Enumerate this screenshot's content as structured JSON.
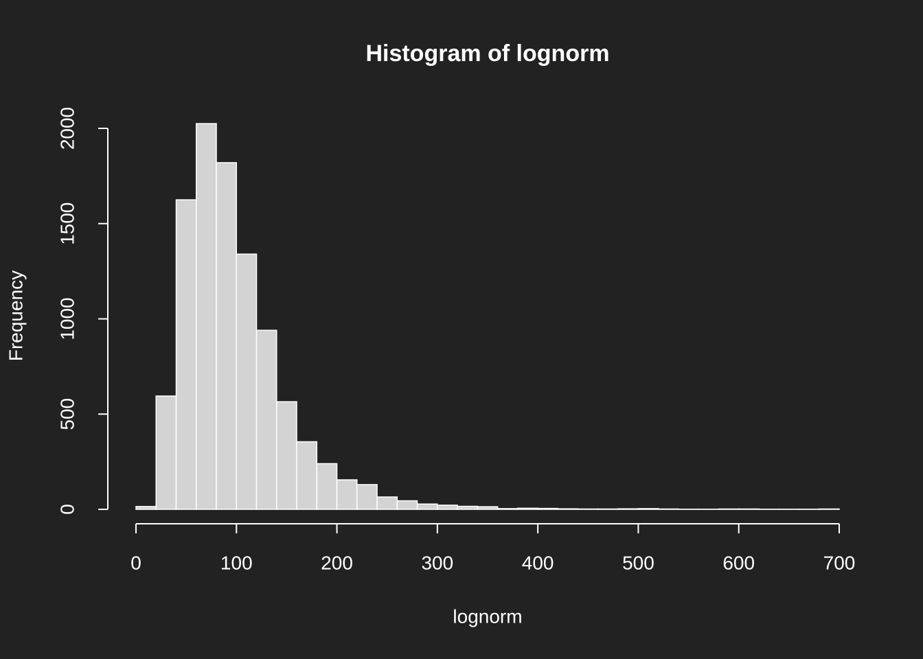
{
  "chart_data": {
    "type": "histogram",
    "title": "Histogram of lognorm",
    "x_label": "lognorm",
    "y_label": "Frequency",
    "bins": [
      0,
      20,
      40,
      60,
      80,
      100,
      120,
      140,
      160,
      180,
      200,
      220,
      240,
      260,
      280,
      300,
      320,
      340,
      360,
      380,
      400,
      420,
      440,
      460,
      480,
      500,
      520,
      540,
      560,
      580,
      600,
      620,
      640,
      660,
      680,
      700
    ],
    "counts": [
      15,
      595,
      1625,
      2025,
      1820,
      1340,
      940,
      565,
      355,
      240,
      155,
      130,
      65,
      45,
      28,
      22,
      16,
      14,
      4,
      6,
      5,
      3,
      2,
      2,
      3,
      4,
      2,
      1,
      1,
      2,
      2,
      1,
      1,
      1,
      2
    ],
    "color": "#d3d3d3",
    "xlim": [
      0,
      700
    ],
    "xticks": [
      0,
      100,
      200,
      300,
      400,
      500,
      600,
      700
    ],
    "ylim": [
      0,
      2000
    ],
    "yticks": [
      0,
      500,
      1000,
      1500,
      2000
    ]
  }
}
